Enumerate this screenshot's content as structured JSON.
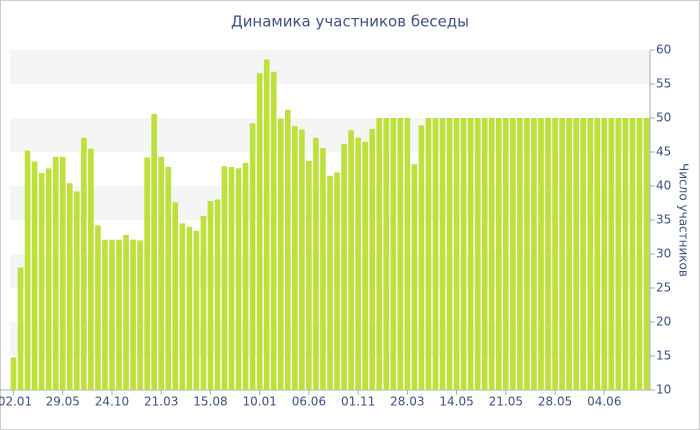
{
  "chart_data": {
    "type": "bar",
    "title": "Динамика участников беседы",
    "y_label": "Число участников",
    "categories": [
      "02.01",
      null,
      null,
      null,
      null,
      null,
      null,
      "29.05",
      null,
      null,
      null,
      null,
      null,
      null,
      "24.10",
      null,
      null,
      null,
      null,
      null,
      null,
      "21.03",
      null,
      null,
      null,
      null,
      null,
      null,
      "15.08",
      null,
      null,
      null,
      null,
      null,
      null,
      "10.01",
      null,
      null,
      null,
      null,
      null,
      null,
      "06.06",
      null,
      null,
      null,
      null,
      null,
      null,
      "01.11",
      null,
      null,
      null,
      null,
      null,
      null,
      "28.03",
      null,
      null,
      null,
      null,
      null,
      null,
      "14.05",
      null,
      null,
      null,
      null,
      null,
      null,
      "21.05",
      null,
      null,
      null,
      null,
      null,
      null,
      "28.05",
      null,
      null,
      null,
      null,
      null,
      null,
      "04.06",
      null,
      null,
      null,
      null,
      null,
      null
    ],
    "values": [
      14.8,
      28,
      45.2,
      43.6,
      41.9,
      42.6,
      44.3,
      44.3,
      40.4,
      39.2,
      47.1,
      45.5,
      34.2,
      32.1,
      32.1,
      32.1,
      32.8,
      32.1,
      32,
      44.2,
      50.6,
      44.3,
      42.8,
      37.6,
      34.5,
      34,
      33.4,
      35.6,
      37.8,
      38,
      42.9,
      42.8,
      42.6,
      43.4,
      49.2,
      56.6,
      58.6,
      56.8,
      49.9,
      51.2,
      48.8,
      48.3,
      43.7,
      47.1,
      45.6,
      41.5,
      42,
      46.2,
      48.2,
      47.1,
      46.5,
      48.4,
      50,
      50,
      50,
      50,
      50,
      43.2,
      48.9,
      50,
      50,
      50,
      50,
      50,
      50,
      50,
      50,
      50,
      50,
      50,
      50,
      50,
      50,
      50,
      50,
      50,
      50,
      50,
      50,
      50,
      50,
      50,
      50,
      50,
      50,
      50,
      50,
      50,
      50,
      50,
      50
    ],
    "color": "#bde03a",
    "ylim": [
      10,
      60
    ],
    "yticks": [
      10,
      15,
      20,
      25,
      30,
      35,
      40,
      45,
      50,
      55,
      60
    ],
    "grid": true
  }
}
